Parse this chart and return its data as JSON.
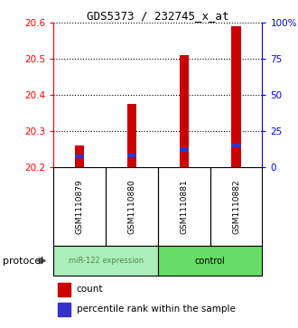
{
  "title": "GDS5373 / 232745_x_at",
  "samples": [
    "GSM1110879",
    "GSM1110880",
    "GSM1110881",
    "GSM1110882"
  ],
  "red_values": [
    20.26,
    20.375,
    20.51,
    20.59
  ],
  "blue_values": [
    20.225,
    20.228,
    20.245,
    20.255
  ],
  "blue_height": 0.01,
  "red_base": 20.2,
  "ylim_left": [
    20.2,
    20.6
  ],
  "ylim_right": [
    0,
    100
  ],
  "yticks_left": [
    20.2,
    20.3,
    20.4,
    20.5,
    20.6
  ],
  "ytick_labels_left": [
    "20.2",
    "20.3",
    "20.4",
    "20.5",
    "20.6"
  ],
  "yticks_right": [
    0,
    25,
    50,
    75,
    100
  ],
  "ytick_labels_right": [
    "0",
    "25",
    "50",
    "75",
    "100%"
  ],
  "bar_width": 0.18,
  "red_color": "#CC0000",
  "blue_color": "#3333CC",
  "bg_gray": "#d0d0d0",
  "group1_color": "#aaeebb",
  "group2_color": "#66dd66",
  "group1_label": "miR-122 expression",
  "group2_label": "control",
  "group1_text_color": "#558855",
  "group2_text_color": "#000000",
  "protocol_label": "protocol",
  "legend_count": "count",
  "legend_percentile": "percentile rank within the sample",
  "n_samples": 4,
  "xlim": [
    -0.5,
    3.5
  ]
}
